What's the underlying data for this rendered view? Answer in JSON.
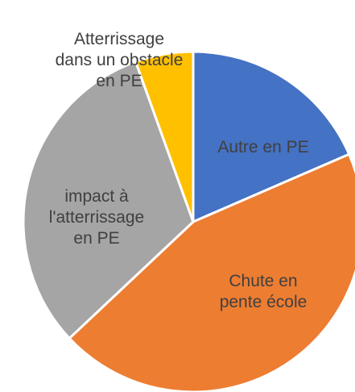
{
  "chart_data": {
    "type": "pie",
    "categories": [
      "Autre en PE",
      "Chute en pente école",
      "impact à l'atterrissage en PE",
      "Atterrissage dans un obstacle en PE"
    ],
    "values": [
      18.5,
      44.5,
      31.5,
      5.5
    ],
    "colors": [
      "#4472c4",
      "#ed7d31",
      "#a5a5a5",
      "#ffc000"
    ]
  }
}
